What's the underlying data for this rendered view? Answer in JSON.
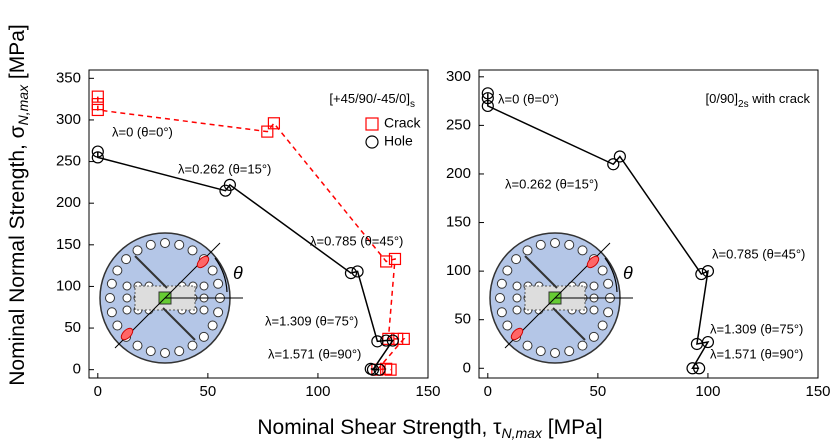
{
  "axis_labels": {
    "x": {
      "text": "Nominal Shear Strength, τ",
      "sub": "N,max",
      "unit": " [MPa]"
    },
    "y": {
      "text": "Nominal Normal Strength, σ",
      "sub": "N,max",
      "unit": " [MPa]"
    }
  },
  "chart_data": [
    {
      "type": "line",
      "title": {
        "text": "[+45/90/-45/0]",
        "sub": "s",
        "tail": ""
      },
      "inset_theta": "θ",
      "xlim": [
        -4,
        150
      ],
      "ylim": [
        -10,
        360
      ],
      "xticks": [
        0,
        50,
        100,
        150
      ],
      "yticks": [
        0,
        50,
        100,
        150,
        200,
        250,
        300,
        350
      ],
      "series": [
        {
          "name": "Crack",
          "color": "#ff0000",
          "marker": "square",
          "dashed": true,
          "x": [
            0,
            0,
            0,
            77,
            80,
            131,
            135,
            132,
            136,
            139,
            127,
            131,
            133
          ],
          "y": [
            328,
            319,
            312,
            286,
            296,
            130,
            133,
            37,
            37,
            37,
            0,
            1,
            0
          ]
        },
        {
          "name": "Hole",
          "color": "#000000",
          "marker": "circle",
          "dashed": false,
          "x": [
            0,
            0,
            58,
            60,
            115,
            118,
            127,
            131,
            134,
            125,
            128,
            124
          ],
          "y": [
            262,
            255,
            215,
            222,
            116,
            118,
            34,
            35,
            35,
            0,
            0,
            1
          ]
        }
      ],
      "annotations": [
        "λ=0 (θ=0°)",
        "λ=0.262 (θ=15°)",
        "λ=0.785 (θ=45°)",
        "λ=1.309 (θ=75°)",
        "λ=1.571 (θ=90°)"
      ]
    },
    {
      "type": "line",
      "title": {
        "text": "[0/90]",
        "sub": "2s",
        "tail": " with crack"
      },
      "inset_theta": "θ",
      "xlim": [
        -4,
        150
      ],
      "ylim": [
        -10,
        307
      ],
      "xticks": [
        0,
        50,
        100,
        150
      ],
      "yticks": [
        0,
        50,
        100,
        150,
        200,
        250,
        300
      ],
      "series": [
        {
          "color": "#000000",
          "marker": "circle",
          "dashed": false,
          "x": [
            0,
            0,
            0,
            57,
            60,
            97,
            100,
            95,
            100,
            93,
            96
          ],
          "y": [
            283,
            278,
            270,
            210,
            218,
            97,
            100,
            25,
            27,
            0,
            0
          ]
        }
      ],
      "annotations": [
        "λ=0 (θ=0°)",
        "λ=0.262 (θ=15°)",
        "λ=0.785 (θ=45°)",
        "λ=1.309 (θ=75°)",
        "λ=1.571 (θ=90°)"
      ]
    }
  ]
}
